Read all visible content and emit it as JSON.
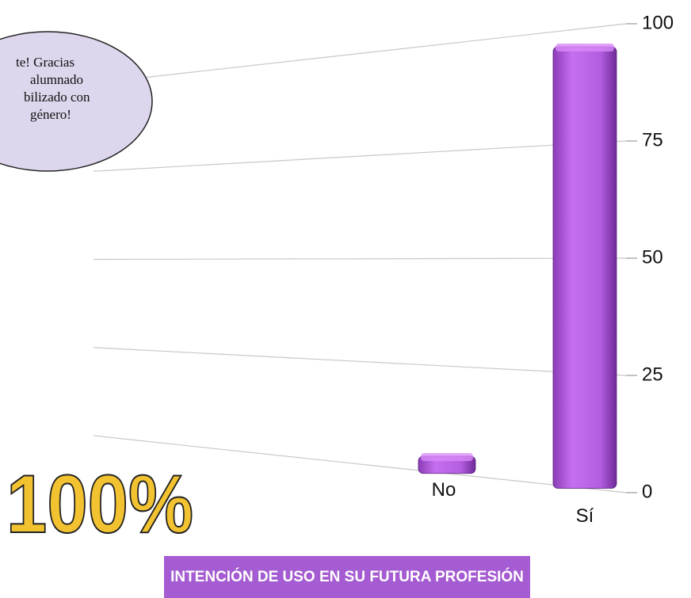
{
  "chart_data": {
    "type": "bar",
    "title": "INTENCIÓN DE USO EN SU FUTURA PROFESIÓN",
    "annotation": [
      "te! Gracias",
      "alumnado",
      "bilizado con",
      "género!"
    ],
    "badge": "100%",
    "categories": [
      "No",
      "Sí"
    ],
    "values": [
      4,
      96
    ],
    "color": "#b35de0",
    "ylim": [
      0,
      100
    ],
    "yticks": [
      0,
      25,
      50,
      75,
      100
    ],
    "grid": true
  }
}
